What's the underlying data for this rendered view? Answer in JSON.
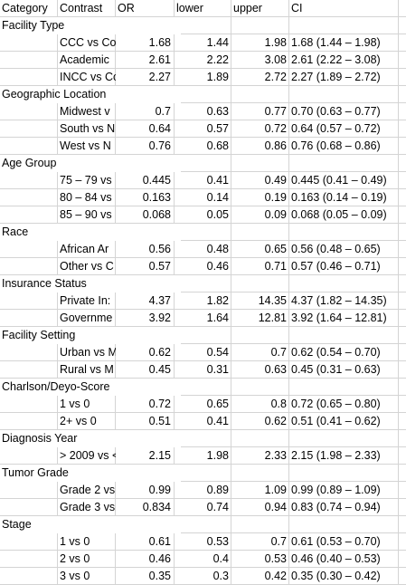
{
  "headers": {
    "category": "Category",
    "contrast": "Contrast",
    "or": "OR",
    "lower": "lower",
    "upper": "upper",
    "ci": "CI"
  },
  "groups": [
    {
      "name": "Facility Type",
      "rows": [
        {
          "contrast": "CCC vs Co",
          "or": "1.68",
          "lower": "1.44",
          "upper": "1.98",
          "ci": "1.68 (1.44 – 1.98)"
        },
        {
          "contrast": "Academic",
          "or": "2.61",
          "lower": "2.22",
          "upper": "3.08",
          "ci": "2.61 (2.22 – 3.08)"
        },
        {
          "contrast": "INCC vs Cc",
          "or": "2.27",
          "lower": "1.89",
          "upper": "2.72",
          "ci": "2.27 (1.89 – 2.72)"
        }
      ]
    },
    {
      "name": "Geographic Location",
      "rows": [
        {
          "contrast": "Midwest v",
          "or": "0.7",
          "lower": "0.63",
          "upper": "0.77",
          "ci": "0.70 (0.63 – 0.77)"
        },
        {
          "contrast": "South vs N",
          "or": "0.64",
          "lower": "0.57",
          "upper": "0.72",
          "ci": "0.64 (0.57 – 0.72)"
        },
        {
          "contrast": "West vs N",
          "or": "0.76",
          "lower": "0.68",
          "upper": "0.86",
          "ci": "0.76 (0.68 – 0.86)"
        }
      ]
    },
    {
      "name": "Age Group",
      "rows": [
        {
          "contrast": "75 – 79 vs",
          "or": "0.445",
          "lower": "0.41",
          "upper": "0.49",
          "ci": "0.445 (0.41 – 0.49)"
        },
        {
          "contrast": "80 – 84 vs",
          "or": "0.163",
          "lower": "0.14",
          "upper": "0.19",
          "ci": "0.163 (0.14 – 0.19)"
        },
        {
          "contrast": "85 – 90 vs",
          "or": "0.068",
          "lower": "0.05",
          "upper": "0.09",
          "ci": "0.068 (0.05 – 0.09)"
        }
      ]
    },
    {
      "name": "Race",
      "rows": [
        {
          "contrast": "African Ar",
          "or": "0.56",
          "lower": "0.48",
          "upper": "0.65",
          "ci": "0.56 (0.48 – 0.65)"
        },
        {
          "contrast": "Other vs C",
          "or": "0.57",
          "lower": "0.46",
          "upper": "0.71",
          "ci": "0.57 (0.46 – 0.71)"
        }
      ]
    },
    {
      "name": "Insurance Status",
      "rows": [
        {
          "contrast": "Private In:",
          "or": "4.37",
          "lower": "1.82",
          "upper": "14.35",
          "ci": "4.37 (1.82 – 14.35)"
        },
        {
          "contrast": "Governme",
          "or": "3.92",
          "lower": "1.64",
          "upper": "12.81",
          "ci": "3.92 (1.64 – 12.81)"
        }
      ]
    },
    {
      "name": "Facility Setting",
      "rows": [
        {
          "contrast": "Urban vs M",
          "or": "0.62",
          "lower": "0.54",
          "upper": "0.7",
          "ci": "0.62 (0.54 – 0.70)"
        },
        {
          "contrast": "Rural vs M",
          "or": "0.45",
          "lower": "0.31",
          "upper": "0.63",
          "ci": "0.45 (0.31 – 0.63)"
        }
      ]
    },
    {
      "name": "Charlson/Deyo-Score",
      "rows": [
        {
          "contrast": "1 vs 0",
          "or": "0.72",
          "lower": "0.65",
          "upper": "0.8",
          "ci": "0.72 (0.65 – 0.80)"
        },
        {
          "contrast": "2+ vs 0",
          "or": "0.51",
          "lower": "0.41",
          "upper": "0.62",
          "ci": "0.51 (0.41 – 0.62)"
        }
      ]
    },
    {
      "name": "Diagnosis Year",
      "rows": [
        {
          "contrast": "> 2009 vs <",
          "or": "2.15",
          "lower": "1.98",
          "upper": "2.33",
          "ci": "2.15 (1.98 – 2.33)"
        }
      ]
    },
    {
      "name": "Tumor Grade",
      "rows": [
        {
          "contrast": "Grade 2 vs",
          "or": "0.99",
          "lower": "0.89",
          "upper": "1.09",
          "ci": "0.99 (0.89 – 1.09)"
        },
        {
          "contrast": "Grade 3 vs",
          "or": "0.834",
          "lower": "0.74",
          "upper": "0.94",
          "ci": "0.83 (0.74 – 0.94)"
        }
      ]
    },
    {
      "name": "Stage",
      "rows": [
        {
          "contrast": "1 vs 0",
          "or": "0.61",
          "lower": "0.53",
          "upper": "0.7",
          "ci": "0.61 (0.53 – 0.70)"
        },
        {
          "contrast": "2 vs 0",
          "or": "0.46",
          "lower": "0.4",
          "upper": "0.53",
          "ci": "0.46 (0.40 – 0.53)"
        },
        {
          "contrast": "3 vs 0",
          "or": "0.35",
          "lower": "0.3",
          "upper": "0.42",
          "ci": "0.35 (0.30 – 0.42)"
        }
      ]
    }
  ]
}
